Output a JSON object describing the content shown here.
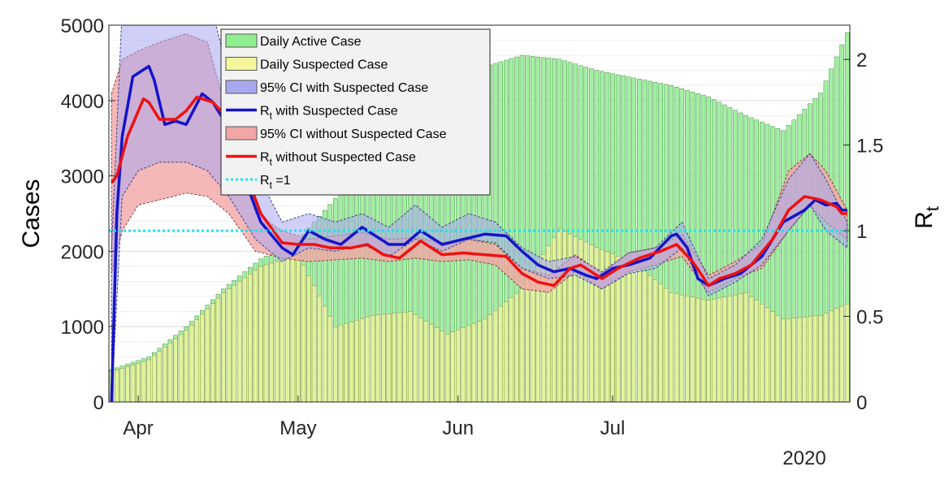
{
  "chart_data": {
    "type": "bar",
    "ylabel_left": "Cases",
    "ylabel_right": "R",
    "ylabel_right_sub": "t",
    "x_ticks": [
      "Apr",
      "May",
      "Jun",
      "Jul"
    ],
    "year_label": "2020",
    "ylim_left": [
      0,
      5000
    ],
    "yticks_left": [
      "0",
      "1000",
      "2000",
      "3000",
      "4000",
      "5000"
    ],
    "ylim_right": [
      0,
      2.2
    ],
    "yticks_right": [
      "0",
      "0.5",
      "1",
      "1.5",
      "2"
    ],
    "grid": true,
    "legend_placement": "top-center",
    "legend": [
      {
        "text": "Daily Active Case",
        "sub": "",
        "after": "",
        "kind": "patch",
        "color": "#90ee90"
      },
      {
        "text": "Daily Suspected Case",
        "sub": "",
        "after": "",
        "kind": "patch",
        "color": "#f3f79a"
      },
      {
        "text": "95% CI with Suspected Case",
        "sub": "",
        "after": "",
        "kind": "patch",
        "color": "#a8a8f0"
      },
      {
        "text": "R",
        "sub": "t",
        "after": " with Suspected Case",
        "kind": "line",
        "color": "#1414c8"
      },
      {
        "text": "95% CI without Suspected Case",
        "sub": "",
        "after": "",
        "kind": "patch",
        "color": "#f2a6a6"
      },
      {
        "text": "R",
        "sub": "t",
        "after": " without Suspected Case",
        "kind": "line",
        "color": "#ee1111"
      },
      {
        "text": "R",
        "sub": "t",
        "after": " =1",
        "kind": "dotted",
        "color": "#22e0ee"
      }
    ],
    "series": [
      {
        "kind": "bar",
        "key": "active",
        "color": "#90ee90",
        "knots": [
          [
            0,
            430
          ],
          [
            7,
            600
          ],
          [
            14,
            1000
          ],
          [
            21,
            1500
          ],
          [
            28,
            1900
          ],
          [
            35,
            2150
          ],
          [
            42,
            2700
          ],
          [
            49,
            3300
          ],
          [
            56,
            3750
          ],
          [
            63,
            4100
          ],
          [
            70,
            4450
          ],
          [
            77,
            4600
          ],
          [
            84,
            4550
          ],
          [
            91,
            4400
          ],
          [
            98,
            4300
          ],
          [
            105,
            4200
          ],
          [
            112,
            4050
          ],
          [
            119,
            3800
          ],
          [
            126,
            3600
          ],
          [
            133,
            4100
          ],
          [
            138,
            4900
          ]
        ]
      },
      {
        "kind": "bar",
        "key": "suspected",
        "color": "#f3f79a",
        "knots": [
          [
            0,
            400
          ],
          [
            7,
            560
          ],
          [
            14,
            950
          ],
          [
            21,
            1450
          ],
          [
            28,
            1800
          ],
          [
            35,
            1950
          ],
          [
            42,
            1000
          ],
          [
            49,
            1150
          ],
          [
            56,
            1200
          ],
          [
            63,
            900
          ],
          [
            70,
            1100
          ],
          [
            77,
            1500
          ],
          [
            84,
            2300
          ],
          [
            91,
            2050
          ],
          [
            98,
            1850
          ],
          [
            105,
            1450
          ],
          [
            112,
            1350
          ],
          [
            119,
            1450
          ],
          [
            126,
            1100
          ],
          [
            133,
            1150
          ],
          [
            138,
            1300
          ]
        ]
      },
      {
        "kind": "band",
        "key": "ci_with",
        "color": "#a8a8f0",
        "knots": [
          [
            0,
            0,
            0.9
          ],
          [
            2,
            1.2,
            2.3
          ],
          [
            5,
            1.35,
            2.5
          ],
          [
            9,
            1.4,
            2.5
          ],
          [
            14,
            1.4,
            2.5
          ],
          [
            18,
            1.35,
            2.4
          ],
          [
            22,
            1.2,
            1.9
          ],
          [
            27,
            0.95,
            1.35
          ],
          [
            32,
            0.82,
            1.05
          ],
          [
            37,
            0.9,
            1.1
          ],
          [
            42,
            0.88,
            1.05
          ],
          [
            47,
            0.92,
            1.1
          ],
          [
            52,
            0.85,
            1.02
          ],
          [
            57,
            0.95,
            1.15
          ],
          [
            62,
            0.88,
            1.02
          ],
          [
            67,
            0.95,
            1.1
          ],
          [
            72,
            0.93,
            1.05
          ],
          [
            77,
            0.78,
            0.9
          ],
          [
            82,
            0.72,
            0.82
          ],
          [
            87,
            0.74,
            0.85
          ],
          [
            92,
            0.66,
            0.76
          ],
          [
            97,
            0.75,
            0.87
          ],
          [
            102,
            0.78,
            0.9
          ],
          [
            107,
            0.9,
            1.05
          ],
          [
            112,
            0.62,
            0.72
          ],
          [
            117,
            0.7,
            0.8
          ],
          [
            122,
            0.8,
            0.95
          ],
          [
            127,
            1.0,
            1.3
          ],
          [
            131,
            1.15,
            1.45
          ],
          [
            134,
            1.0,
            1.3
          ],
          [
            138,
            0.9,
            1.05
          ]
        ]
      },
      {
        "kind": "band",
        "key": "ci_without",
        "color": "#f2a6a6",
        "knots": [
          [
            0,
            0.75,
            1.8
          ],
          [
            2,
            1.0,
            2.0
          ],
          [
            5,
            1.15,
            2.05
          ],
          [
            9,
            1.18,
            2.1
          ],
          [
            14,
            1.22,
            2.15
          ],
          [
            18,
            1.2,
            2.1
          ],
          [
            22,
            1.1,
            1.65
          ],
          [
            27,
            0.88,
            1.1
          ],
          [
            32,
            0.84,
            1.0
          ],
          [
            37,
            0.82,
            0.95
          ],
          [
            42,
            0.83,
            0.97
          ],
          [
            47,
            0.84,
            0.99
          ],
          [
            52,
            0.82,
            0.95
          ],
          [
            57,
            0.84,
            0.96
          ],
          [
            62,
            0.82,
            0.93
          ],
          [
            67,
            0.83,
            0.95
          ],
          [
            72,
            0.8,
            0.92
          ],
          [
            77,
            0.66,
            0.78
          ],
          [
            82,
            0.64,
            0.74
          ],
          [
            87,
            0.76,
            0.86
          ],
          [
            92,
            0.66,
            0.75
          ],
          [
            97,
            0.76,
            0.87
          ],
          [
            102,
            0.8,
            0.9
          ],
          [
            107,
            0.85,
            0.98
          ],
          [
            112,
            0.64,
            0.74
          ],
          [
            117,
            0.72,
            0.82
          ],
          [
            122,
            0.78,
            0.92
          ],
          [
            127,
            1.0,
            1.35
          ],
          [
            131,
            1.15,
            1.45
          ],
          [
            134,
            1.05,
            1.35
          ],
          [
            138,
            0.95,
            1.12
          ]
        ]
      },
      {
        "kind": "line",
        "key": "rt_with",
        "color": "#1414c8",
        "knots": [
          [
            0,
            0
          ],
          [
            1,
            1.1
          ],
          [
            2,
            1.55
          ],
          [
            4,
            1.9
          ],
          [
            7,
            1.96
          ],
          [
            8,
            1.88
          ],
          [
            10,
            1.62
          ],
          [
            12,
            1.64
          ],
          [
            14,
            1.62
          ],
          [
            17,
            1.8
          ],
          [
            19,
            1.75
          ],
          [
            22,
            1.6
          ],
          [
            25,
            1.3
          ],
          [
            28,
            1.05
          ],
          [
            32,
            0.9
          ],
          [
            34,
            0.86
          ],
          [
            37,
            1.0
          ],
          [
            40,
            0.95
          ],
          [
            43,
            0.92
          ],
          [
            47,
            1.02
          ],
          [
            52,
            0.92
          ],
          [
            55,
            0.92
          ],
          [
            58,
            1.0
          ],
          [
            62,
            0.92
          ],
          [
            66,
            0.95
          ],
          [
            70,
            0.98
          ],
          [
            74,
            0.97
          ],
          [
            77,
            0.88
          ],
          [
            80,
            0.8
          ],
          [
            83,
            0.76
          ],
          [
            86,
            0.78
          ],
          [
            89,
            0.74
          ],
          [
            91,
            0.72
          ],
          [
            94,
            0.78
          ],
          [
            97,
            0.8
          ],
          [
            101,
            0.84
          ],
          [
            105,
            0.97
          ],
          [
            106,
            0.98
          ],
          [
            108,
            0.9
          ],
          [
            110,
            0.72
          ],
          [
            112,
            0.68
          ],
          [
            115,
            0.72
          ],
          [
            118,
            0.75
          ],
          [
            122,
            0.85
          ],
          [
            126,
            1.05
          ],
          [
            130,
            1.12
          ],
          [
            132,
            1.18
          ],
          [
            134,
            1.15
          ],
          [
            136,
            1.16
          ],
          [
            137,
            1.12
          ]
        ]
      },
      {
        "kind": "line",
        "key": "rt_without",
        "color": "#ee1111",
        "knots": [
          [
            0,
            1.28
          ],
          [
            1,
            1.32
          ],
          [
            3,
            1.55
          ],
          [
            6,
            1.77
          ],
          [
            7,
            1.75
          ],
          [
            9,
            1.65
          ],
          [
            12,
            1.65
          ],
          [
            14,
            1.7
          ],
          [
            16,
            1.78
          ],
          [
            19,
            1.75
          ],
          [
            22,
            1.65
          ],
          [
            25,
            1.35
          ],
          [
            28,
            1.1
          ],
          [
            32,
            0.93
          ],
          [
            35,
            0.92
          ],
          [
            38,
            0.92
          ],
          [
            41,
            0.9
          ],
          [
            45,
            0.9
          ],
          [
            48,
            0.92
          ],
          [
            51,
            0.86
          ],
          [
            54,
            0.84
          ],
          [
            58,
            0.94
          ],
          [
            62,
            0.86
          ],
          [
            66,
            0.87
          ],
          [
            70,
            0.86
          ],
          [
            74,
            0.85
          ],
          [
            77,
            0.75
          ],
          [
            80,
            0.7
          ],
          [
            83,
            0.68
          ],
          [
            86,
            0.78
          ],
          [
            88,
            0.8
          ],
          [
            90,
            0.76
          ],
          [
            92,
            0.72
          ],
          [
            95,
            0.78
          ],
          [
            99,
            0.84
          ],
          [
            103,
            0.88
          ],
          [
            106,
            0.92
          ],
          [
            109,
            0.82
          ],
          [
            112,
            0.68
          ],
          [
            114,
            0.72
          ],
          [
            117,
            0.75
          ],
          [
            120,
            0.8
          ],
          [
            124,
            0.95
          ],
          [
            127,
            1.12
          ],
          [
            130,
            1.2
          ],
          [
            133,
            1.18
          ],
          [
            136,
            1.14
          ],
          [
            137,
            1.1
          ]
        ]
      },
      {
        "kind": "hline",
        "key": "rt_one",
        "color": "#22e0ee",
        "value": 1
      }
    ]
  }
}
